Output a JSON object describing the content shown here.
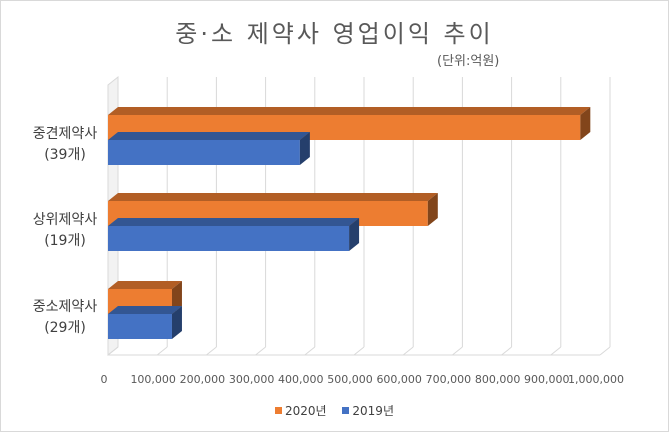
{
  "chart_data": {
    "type": "bar",
    "orientation": "horizontal",
    "title": "중·소 제약사 영업이익 추이",
    "subtitle": "(단위:억원)",
    "categories": [
      {
        "name": "중견제약사",
        "count": "(39개)"
      },
      {
        "name": "상위제약사",
        "count": "(19개)"
      },
      {
        "name": "중소제약사",
        "count": "(29개)"
      }
    ],
    "series": [
      {
        "name": "2020년",
        "color": "#ed7d31",
        "values": [
          960000,
          650000,
          130000
        ]
      },
      {
        "name": "2019년",
        "color": "#4472c4",
        "values": [
          390000,
          490000,
          130000
        ]
      }
    ],
    "xlim": [
      0,
      1000000
    ],
    "xticks": [
      "0",
      "100,000",
      "200,000",
      "300,000",
      "400,000",
      "500,000",
      "600,000",
      "700,000",
      "800,000",
      "900,000",
      "1,000,000"
    ],
    "grid": true,
    "legend_position": "bottom",
    "style": "3d"
  }
}
